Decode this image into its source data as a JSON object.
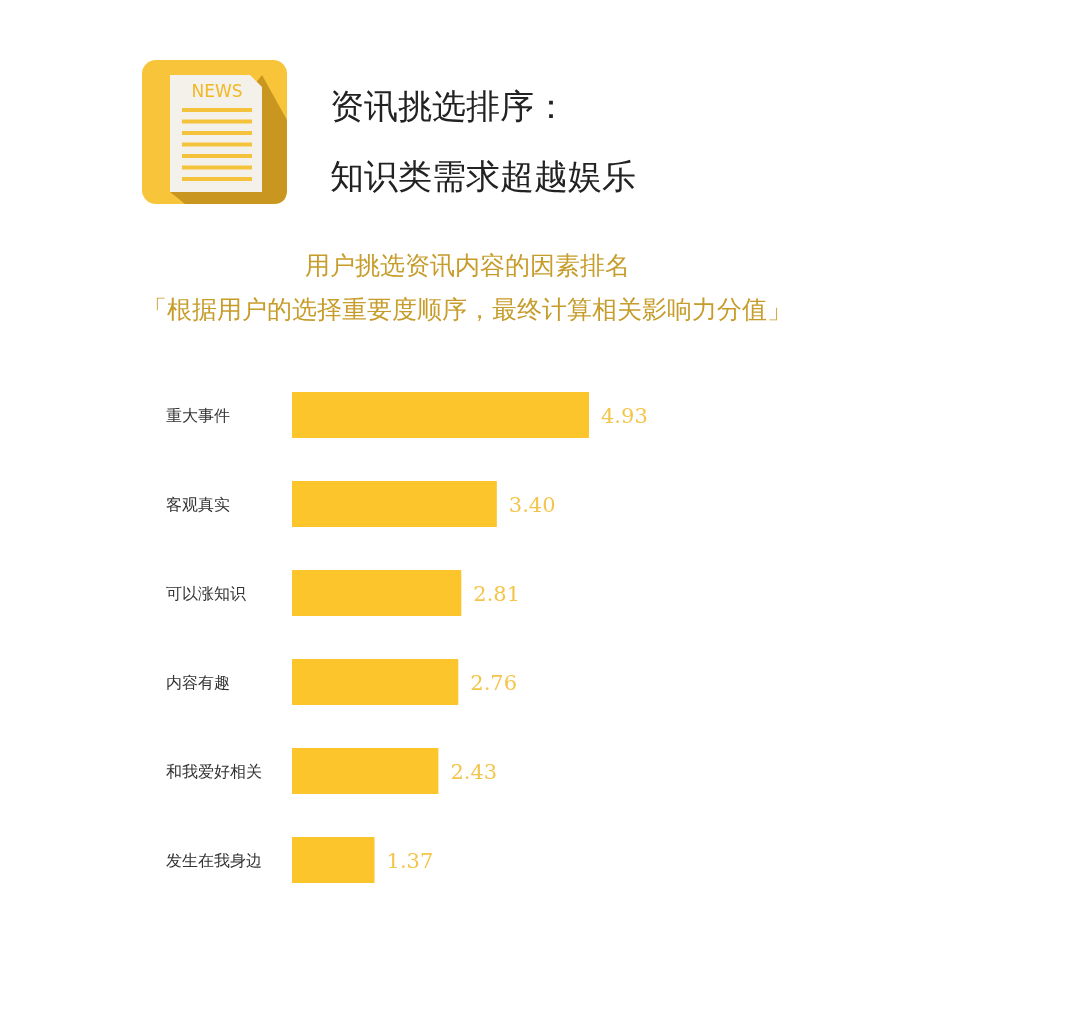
{
  "chart_data": {
    "type": "bar",
    "orientation": "horizontal",
    "title": "资讯挑选排序：知识类需求超越娱乐",
    "subtitle": "用户挑选资讯内容的因素排名",
    "categories": [
      "重大事件",
      "客观真实",
      "可以涨知识",
      "内容有趣",
      "和我爱好相关",
      "发生在我身边"
    ],
    "values": [
      4.93,
      3.4,
      2.81,
      2.76,
      2.43,
      1.37
    ],
    "value_labels": [
      "4.93",
      "3.40",
      "2.81",
      "2.76",
      "2.43",
      "1.37"
    ],
    "color": "#fbc52b",
    "annotations": [
      "NEWS",
      "「根据用户的选择重要度顺序，最终计算相关影响力分值」"
    ]
  }
}
